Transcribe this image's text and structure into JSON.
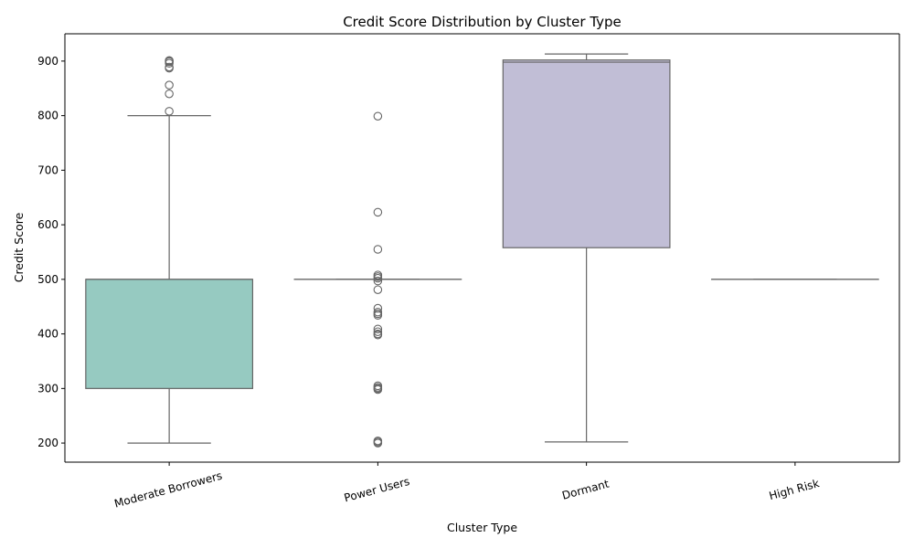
{
  "chart_data": {
    "type": "box",
    "title": "Credit Score Distribution by Cluster Type",
    "xlabel": "Cluster Type",
    "ylabel": "Credit Score",
    "ylim": [
      165,
      950
    ],
    "yticks": [
      200,
      300,
      400,
      500,
      600,
      700,
      800,
      900
    ],
    "grid": false,
    "legend": "none",
    "categories": [
      "Moderate Borrowers",
      "Power Users",
      "Dormant",
      "High Risk"
    ],
    "boxes": [
      {
        "category": "Moderate Borrowers",
        "whisker_low": 200,
        "q1": 300,
        "median": 500,
        "q3": 500,
        "whisker_high": 800,
        "outliers": [
          808,
          840,
          856,
          887,
          889,
          896,
          899,
          900,
          901
        ],
        "color": "#96cac1"
      },
      {
        "category": "Power Users",
        "whisker_low": 500,
        "q1": 500,
        "median": 500,
        "q3": 500,
        "whisker_high": 500,
        "outliers": [
          200,
          202,
          204,
          298,
          300,
          302,
          305,
          398,
          400,
          404,
          409,
          434,
          437,
          440,
          447,
          481,
          497,
          502,
          505,
          508,
          555,
          623,
          799
        ],
        "color": "#f6f6bc"
      },
      {
        "category": "Dormant",
        "whisker_low": 202,
        "q1": 558,
        "median": 898,
        "q3": 902,
        "whisker_high": 913,
        "outliers": [],
        "color": "#c1bed6"
      },
      {
        "category": "High Risk",
        "whisker_low": 500,
        "q1": 500,
        "median": 500,
        "q3": 500,
        "whisker_high": 500,
        "outliers": [],
        "color": "#eb8b80"
      }
    ],
    "colors": {
      "line": "#666666",
      "axis": "#000000"
    }
  }
}
